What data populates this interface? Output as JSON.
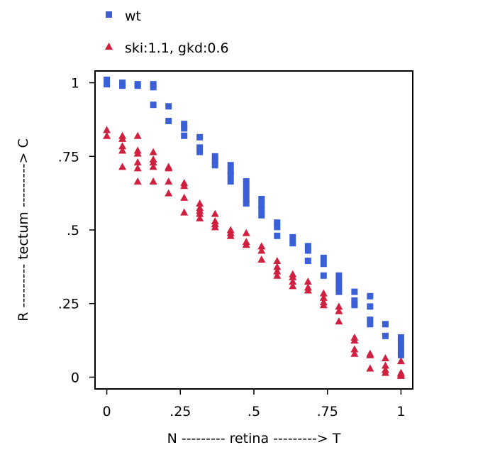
{
  "chart_data": {
    "type": "scatter",
    "xlabel": "N --------- retina ---------> T",
    "ylabel": "R --------- tectum ---------> C",
    "xlim": [
      -0.04,
      1.04
    ],
    "ylim": [
      -0.04,
      1.04
    ],
    "x_ticks": [
      {
        "value": 0,
        "label": "0"
      },
      {
        "value": 0.25,
        "label": ".25"
      },
      {
        "value": 0.5,
        "label": ".5"
      },
      {
        "value": 0.75,
        "label": ".75"
      },
      {
        "value": 1,
        "label": "1"
      }
    ],
    "y_ticks": [
      {
        "value": 0,
        "label": "0"
      },
      {
        "value": 0.25,
        "label": ".25"
      },
      {
        "value": 0.5,
        "label": ".5"
      },
      {
        "value": 0.75,
        "label": ".75"
      },
      {
        "value": 1,
        "label": "1"
      }
    ],
    "grid": false,
    "legend_position": "top-left",
    "series": [
      {
        "name": "wt",
        "marker": "square",
        "color": "#3a5fd6",
        "points": [
          [
            0,
            1.01
          ],
          [
            0,
            0.995
          ],
          [
            0.053,
            1.0
          ],
          [
            0.053,
            0.99
          ],
          [
            0.105,
            0.995
          ],
          [
            0.105,
            0.99
          ],
          [
            0.158,
            0.995
          ],
          [
            0.158,
            0.985
          ],
          [
            0.158,
            0.925
          ],
          [
            0.21,
            0.92
          ],
          [
            0.21,
            0.87
          ],
          [
            0.263,
            0.86
          ],
          [
            0.263,
            0.845
          ],
          [
            0.263,
            0.82
          ],
          [
            0.316,
            0.815
          ],
          [
            0.316,
            0.78
          ],
          [
            0.316,
            0.765
          ],
          [
            0.368,
            0.75
          ],
          [
            0.368,
            0.735
          ],
          [
            0.368,
            0.72
          ],
          [
            0.421,
            0.72
          ],
          [
            0.421,
            0.7
          ],
          [
            0.421,
            0.685
          ],
          [
            0.421,
            0.665
          ],
          [
            0.474,
            0.665
          ],
          [
            0.474,
            0.645
          ],
          [
            0.474,
            0.625
          ],
          [
            0.474,
            0.605
          ],
          [
            0.474,
            0.59
          ],
          [
            0.526,
            0.605
          ],
          [
            0.526,
            0.585
          ],
          [
            0.526,
            0.57
          ],
          [
            0.526,
            0.55
          ],
          [
            0.579,
            0.525
          ],
          [
            0.579,
            0.51
          ],
          [
            0.579,
            0.48
          ],
          [
            0.632,
            0.475
          ],
          [
            0.632,
            0.455
          ],
          [
            0.684,
            0.445
          ],
          [
            0.684,
            0.43
          ],
          [
            0.684,
            0.395
          ],
          [
            0.737,
            0.405
          ],
          [
            0.737,
            0.385
          ],
          [
            0.737,
            0.345
          ],
          [
            0.789,
            0.345
          ],
          [
            0.789,
            0.325
          ],
          [
            0.789,
            0.305
          ],
          [
            0.789,
            0.29
          ],
          [
            0.842,
            0.29
          ],
          [
            0.842,
            0.26
          ],
          [
            0.842,
            0.245
          ],
          [
            0.895,
            0.275
          ],
          [
            0.895,
            0.24
          ],
          [
            0.895,
            0.195
          ],
          [
            0.895,
            0.18
          ],
          [
            0.947,
            0.18
          ],
          [
            0.947,
            0.14
          ],
          [
            1,
            0.135
          ],
          [
            1,
            0.12
          ],
          [
            1,
            0.105
          ],
          [
            1,
            0.09
          ],
          [
            1,
            0.075
          ]
        ]
      },
      {
        "name": "ski:1.1, gkd:0.6",
        "marker": "triangle",
        "color": "#d0203f",
        "points": [
          [
            0,
            0.84
          ],
          [
            0,
            0.82
          ],
          [
            0.053,
            0.82
          ],
          [
            0.053,
            0.81
          ],
          [
            0.053,
            0.785
          ],
          [
            0.053,
            0.77
          ],
          [
            0.053,
            0.715
          ],
          [
            0.105,
            0.82
          ],
          [
            0.105,
            0.77
          ],
          [
            0.105,
            0.76
          ],
          [
            0.105,
            0.73
          ],
          [
            0.105,
            0.71
          ],
          [
            0.105,
            0.665
          ],
          [
            0.158,
            0.765
          ],
          [
            0.158,
            0.74
          ],
          [
            0.158,
            0.73
          ],
          [
            0.158,
            0.715
          ],
          [
            0.158,
            0.665
          ],
          [
            0.21,
            0.715
          ],
          [
            0.21,
            0.71
          ],
          [
            0.21,
            0.665
          ],
          [
            0.21,
            0.625
          ],
          [
            0.263,
            0.66
          ],
          [
            0.263,
            0.65
          ],
          [
            0.263,
            0.61
          ],
          [
            0.263,
            0.56
          ],
          [
            0.316,
            0.59
          ],
          [
            0.316,
            0.575
          ],
          [
            0.316,
            0.565
          ],
          [
            0.316,
            0.555
          ],
          [
            0.316,
            0.54
          ],
          [
            0.368,
            0.555
          ],
          [
            0.368,
            0.53
          ],
          [
            0.368,
            0.52
          ],
          [
            0.368,
            0.51
          ],
          [
            0.421,
            0.5
          ],
          [
            0.421,
            0.49
          ],
          [
            0.421,
            0.48
          ],
          [
            0.474,
            0.49
          ],
          [
            0.474,
            0.46
          ],
          [
            0.474,
            0.45
          ],
          [
            0.526,
            0.445
          ],
          [
            0.526,
            0.43
          ],
          [
            0.526,
            0.4
          ],
          [
            0.579,
            0.395
          ],
          [
            0.579,
            0.375
          ],
          [
            0.579,
            0.36
          ],
          [
            0.579,
            0.345
          ],
          [
            0.632,
            0.35
          ],
          [
            0.632,
            0.34
          ],
          [
            0.632,
            0.325
          ],
          [
            0.632,
            0.31
          ],
          [
            0.684,
            0.325
          ],
          [
            0.684,
            0.305
          ],
          [
            0.684,
            0.295
          ],
          [
            0.737,
            0.285
          ],
          [
            0.737,
            0.27
          ],
          [
            0.737,
            0.255
          ],
          [
            0.737,
            0.245
          ],
          [
            0.789,
            0.24
          ],
          [
            0.789,
            0.225
          ],
          [
            0.789,
            0.19
          ],
          [
            0.842,
            0.135
          ],
          [
            0.842,
            0.125
          ],
          [
            0.842,
            0.095
          ],
          [
            0.842,
            0.08
          ],
          [
            0.895,
            0.08
          ],
          [
            0.895,
            0.075
          ],
          [
            0.895,
            0.03
          ],
          [
            0.947,
            0.065
          ],
          [
            0.947,
            0.04
          ],
          [
            0.947,
            0.025
          ],
          [
            0.947,
            0.015
          ],
          [
            1,
            0.055
          ],
          [
            1,
            0.015
          ],
          [
            1,
            0.01
          ],
          [
            1,
            0.005
          ]
        ]
      }
    ]
  }
}
